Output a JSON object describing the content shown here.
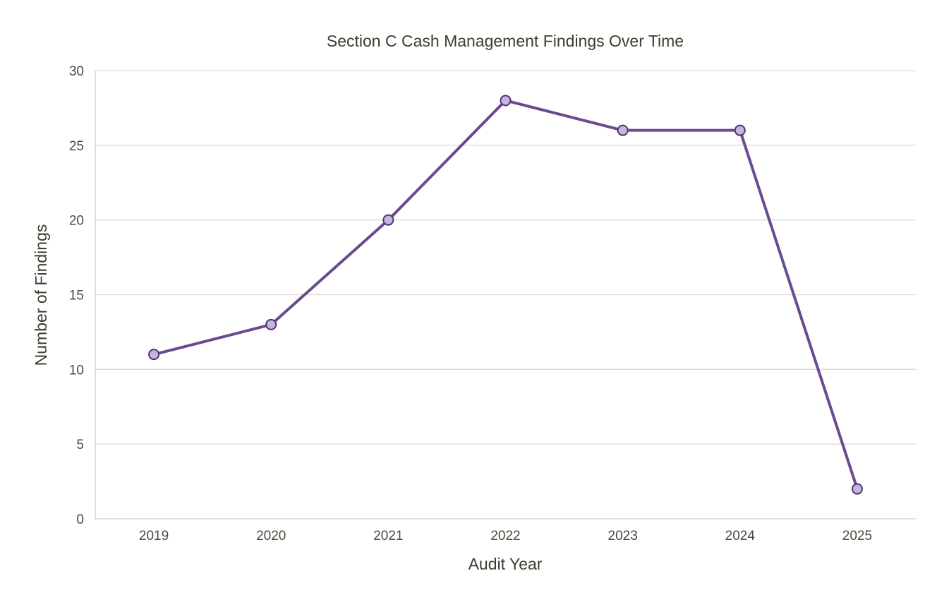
{
  "chart_data": {
    "type": "line",
    "title": "Section C Cash Management Findings Over Time",
    "xlabel": "Audit Year",
    "ylabel": "Number of Findings",
    "categories": [
      "2019",
      "2020",
      "2021",
      "2022",
      "2023",
      "2024",
      "2025"
    ],
    "series": [
      {
        "values": [
          11,
          13,
          20,
          28,
          26,
          26,
          2
        ]
      }
    ],
    "ylim": [
      0,
      30
    ],
    "yticks": [
      0,
      5,
      10,
      15,
      20,
      25,
      30
    ],
    "grid": "horizontal",
    "legend": "none",
    "colors": {
      "line": "#6a4c8c",
      "marker_fill": "#c7b3e0",
      "marker_stroke": "#4f3470"
    }
  }
}
